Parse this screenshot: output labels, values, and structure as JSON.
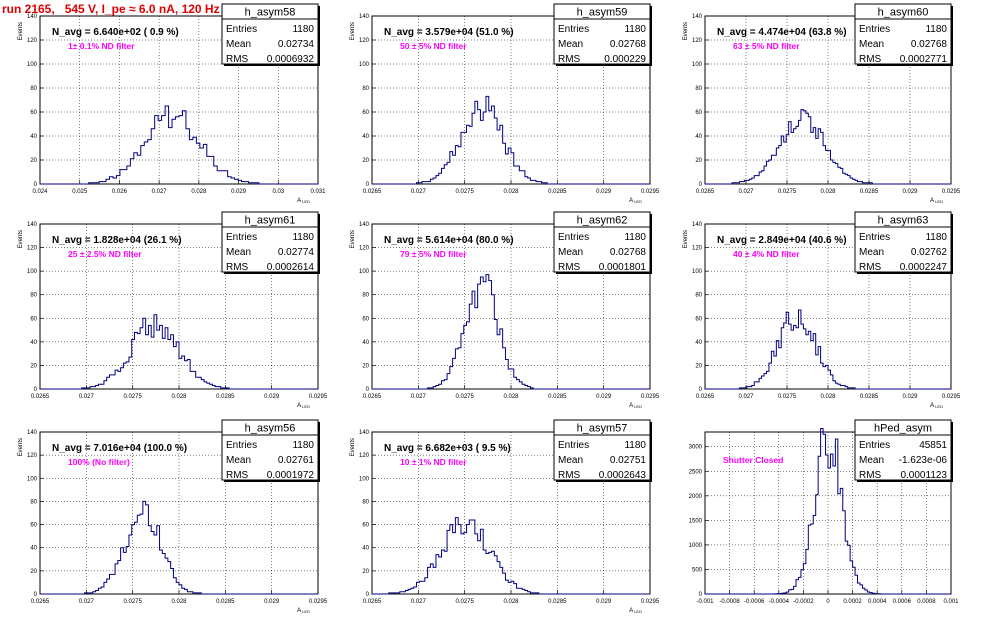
{
  "run_title": "run 2165,   545 V, I_pe ≈ 6.0 nA, 120 Hz",
  "colors": {
    "hist_line": "#000080",
    "annotation": "#ff00ff",
    "title": "#e00000"
  },
  "chart_data": [
    {
      "type": "bar",
      "name": "h_asym58",
      "ylabel": "Events",
      "xlabel": "A",
      "xlabel_sub": "LED",
      "nav_label": "N_avg = 6.640e+02 ( 0.9 %)",
      "filter_label": "1± 0.1% ND filter",
      "xlim": [
        0.024,
        0.031
      ],
      "xticks": [
        "0.024",
        "0.025",
        "0.026",
        "0.027",
        "0.028",
        "0.029",
        "0.03",
        "0.031"
      ],
      "ylim": [
        0,
        140
      ],
      "yticks": [
        0,
        20,
        40,
        60,
        80,
        100,
        120,
        140
      ],
      "stats": {
        "entries": "1180",
        "mean": "0.02734",
        "rms": "0.0006932"
      },
      "hist": {
        "center": 0.02734,
        "sigma": 0.000693,
        "peak": 58,
        "bins": 80
      }
    },
    {
      "type": "bar",
      "name": "h_asym59",
      "ylabel": "Events",
      "xlabel": "A",
      "xlabel_sub": "LED",
      "nav_label": "N_avg = 3.579e+04 (51.0 %)",
      "filter_label": "50 ± 5% ND filter",
      "xlim": [
        0.0265,
        0.0295
      ],
      "xticks": [
        "0.0265",
        "0.027",
        "0.0275",
        "0.028",
        "0.0285",
        "0.029",
        "0.0295"
      ],
      "ylim": [
        0,
        140
      ],
      "yticks": [
        0,
        20,
        40,
        60,
        80,
        100,
        120,
        140
      ],
      "stats": {
        "entries": "1180",
        "mean": "0.02768",
        "rms": "0.000229"
      },
      "hist": {
        "center": 0.02768,
        "sigma": 0.000229,
        "peak": 64,
        "bins": 100
      }
    },
    {
      "type": "bar",
      "name": "h_asym60",
      "ylabel": "Events",
      "xlabel": "A",
      "xlabel_sub": "LED",
      "nav_label": "N_avg = 4.474e+04 (63.8 %)",
      "filter_label": "63 ± 5% ND filter",
      "xlim": [
        0.0265,
        0.0295
      ],
      "xticks": [
        "0.0265",
        "0.027",
        "0.0275",
        "0.028",
        "0.0285",
        "0.029",
        "0.0295"
      ],
      "ylim": [
        0,
        140
      ],
      "yticks": [
        0,
        20,
        40,
        60,
        80,
        100,
        120,
        140
      ],
      "stats": {
        "entries": "1180",
        "mean": "0.02768",
        "rms": "0.0002771"
      },
      "hist": {
        "center": 0.02768,
        "sigma": 0.000277,
        "peak": 55,
        "bins": 100
      }
    },
    {
      "type": "bar",
      "name": "h_asym61",
      "ylabel": "Events",
      "xlabel": "A",
      "xlabel_sub": "LED",
      "nav_label": "N_avg = 1.828e+04 (26.1 %)",
      "filter_label": "25 ± 2.5% ND filter",
      "xlim": [
        0.0265,
        0.0295
      ],
      "xticks": [
        "0.0265",
        "0.027",
        "0.0275",
        "0.028",
        "0.0285",
        "0.029",
        "0.0295"
      ],
      "ylim": [
        0,
        140
      ],
      "yticks": [
        0,
        20,
        40,
        60,
        80,
        100,
        120,
        140
      ],
      "stats": {
        "entries": "1180",
        "mean": "0.02774",
        "rms": "0.0002614"
      },
      "hist": {
        "center": 0.02774,
        "sigma": 0.000261,
        "peak": 55,
        "bins": 100
      }
    },
    {
      "type": "bar",
      "name": "h_asym62",
      "ylabel": "Events",
      "xlabel": "A",
      "xlabel_sub": "LED",
      "nav_label": "N_avg = 5.614e+04 (80.0 %)",
      "filter_label": "79 ± 5% ND filter",
      "xlim": [
        0.0265,
        0.0295
      ],
      "xticks": [
        "0.0265",
        "0.027",
        "0.0275",
        "0.028",
        "0.0285",
        "0.029",
        "0.0295"
      ],
      "ylim": [
        0,
        140
      ],
      "yticks": [
        0,
        20,
        40,
        60,
        80,
        100,
        120,
        140
      ],
      "stats": {
        "entries": "1180",
        "mean": "0.02768",
        "rms": "0.0001801"
      },
      "hist": {
        "center": 0.02768,
        "sigma": 0.00018,
        "peak": 88,
        "bins": 100
      }
    },
    {
      "type": "bar",
      "name": "h_asym63",
      "ylabel": "Events",
      "xlabel": "A",
      "xlabel_sub": "LED",
      "nav_label": "N_avg = 2.849e+04 (40.6 %)",
      "filter_label": "40 ± 4% ND filter",
      "xlim": [
        0.0265,
        0.0295
      ],
      "xticks": [
        "0.0265",
        "0.027",
        "0.0275",
        "0.028",
        "0.0285",
        "0.029",
        "0.0295"
      ],
      "ylim": [
        0,
        140
      ],
      "yticks": [
        0,
        20,
        40,
        60,
        80,
        100,
        120,
        140
      ],
      "stats": {
        "entries": "1180",
        "mean": "0.02762",
        "rms": "0.0002247"
      },
      "hist": {
        "center": 0.02762,
        "sigma": 0.000225,
        "peak": 65,
        "bins": 100
      }
    },
    {
      "type": "bar",
      "name": "h_asym56",
      "ylabel": "Events",
      "xlabel": "A",
      "xlabel_sub": "LED",
      "nav_label": "N_avg = 7.016e+04 (100.0 %)",
      "filter_label": "100% (No filter)",
      "xlim": [
        0.0265,
        0.0295
      ],
      "xticks": [
        "0.0265",
        "0.027",
        "0.0275",
        "0.028",
        "0.0285",
        "0.029",
        "0.0295"
      ],
      "ylim": [
        0,
        140
      ],
      "yticks": [
        0,
        20,
        40,
        60,
        80,
        100,
        120,
        140
      ],
      "stats": {
        "entries": "1180",
        "mean": "0.02761",
        "rms": "0.0001972"
      },
      "hist": {
        "center": 0.02761,
        "sigma": 0.000197,
        "peak": 72,
        "bins": 100
      }
    },
    {
      "type": "bar",
      "name": "h_asym57",
      "ylabel": "Events",
      "xlabel": "A",
      "xlabel_sub": "LED",
      "nav_label": "N_avg = 6.682e+03 ( 9.5 %)",
      "filter_label": "10 ± 1% ND filter",
      "xlim": [
        0.0265,
        0.0295
      ],
      "xticks": [
        "0.0265",
        "0.027",
        "0.0275",
        "0.028",
        "0.0285",
        "0.029",
        "0.0295"
      ],
      "ylim": [
        0,
        140
      ],
      "yticks": [
        0,
        20,
        40,
        60,
        80,
        100,
        120,
        140
      ],
      "stats": {
        "entries": "1180",
        "mean": "0.02751",
        "rms": "0.0002643"
      },
      "hist": {
        "center": 0.02751,
        "sigma": 0.000264,
        "peak": 60,
        "bins": 100
      }
    },
    {
      "type": "bar",
      "name": "hPed_asym",
      "ylabel": "",
      "xlabel": "",
      "xlabel_sub": "",
      "nav_label": "",
      "filter_label": "Shutter Closed",
      "xlim": [
        -0.001,
        0.001
      ],
      "xticks": [
        "-0.001",
        "-0.0008",
        "-0.0006",
        "-0.0004",
        "-0.0002",
        "0",
        "0.0002",
        "0.0004",
        "0.0006",
        "0.0008",
        "0.001"
      ],
      "ylim": [
        0,
        3300
      ],
      "yticks": [
        0,
        500,
        1000,
        1500,
        2000,
        2500,
        3000
      ],
      "stats": {
        "entries": "45851",
        "mean": "-1.623e-06",
        "rms": "0.0001123"
      },
      "hist": {
        "center": 0.0,
        "sigma": 0.000112,
        "peak": 3200,
        "bins": 100
      }
    }
  ]
}
